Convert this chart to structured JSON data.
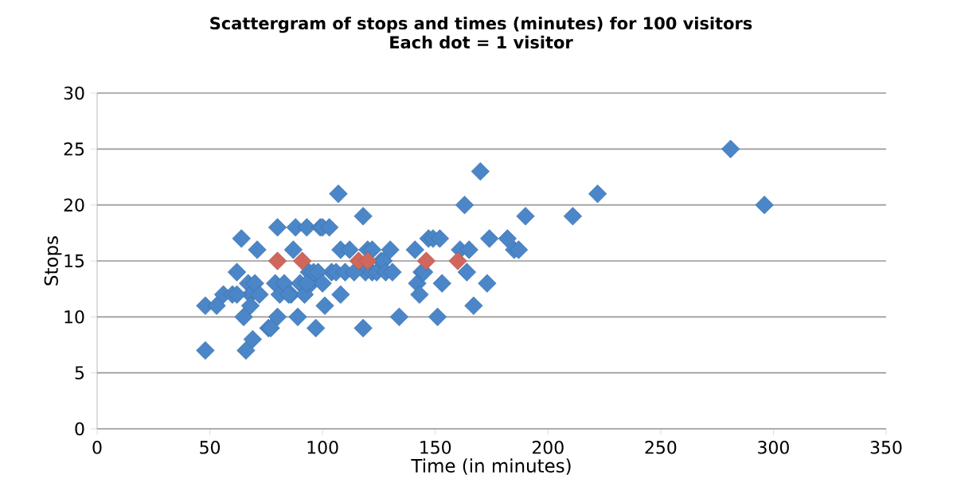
{
  "chart_data": {
    "type": "scatter",
    "title": "Scattergram of stops and times (minutes) for 100 visitors",
    "subtitle": "Each dot = 1 visitor",
    "xlabel": "Time (in minutes)",
    "ylabel": "Stops",
    "xlim": [
      0,
      350
    ],
    "ylim": [
      0,
      30
    ],
    "xticks": [
      0,
      50,
      100,
      150,
      200,
      250,
      300,
      350
    ],
    "yticks": [
      0,
      5,
      10,
      15,
      20,
      25,
      30
    ],
    "grid": "y",
    "marker": "diamond",
    "series": [
      {
        "color": "#4a86c8",
        "x": [
          48,
          48,
          53,
          56,
          60,
          62,
          64,
          65,
          66,
          67,
          68,
          69,
          70,
          71,
          72,
          76,
          79,
          80,
          80,
          81,
          83,
          86,
          87,
          88,
          89,
          90,
          92,
          93,
          94,
          95,
          96,
          97,
          99,
          100,
          101,
          103,
          104,
          106,
          107,
          108,
          108,
          110,
          112,
          118,
          118,
          119,
          120,
          122,
          124,
          126,
          127,
          128,
          130,
          131,
          134,
          141,
          142,
          143,
          144,
          147,
          149,
          151,
          152,
          153,
          161,
          163,
          164,
          165,
          167,
          170,
          173,
          174,
          182,
          185,
          187,
          190,
          211,
          222,
          281,
          296,
          98,
          114,
          100,
          145,
          68,
          85,
          122,
          93,
          62,
          77
        ],
        "values": [
          11,
          7,
          11,
          12,
          12,
          14,
          17,
          10,
          7,
          13,
          12,
          8,
          13,
          16,
          12,
          9,
          13,
          18,
          10,
          12,
          13,
          12,
          16,
          18,
          10,
          13,
          12,
          18,
          14,
          13,
          14,
          9,
          18,
          18,
          11,
          18,
          14,
          14,
          21,
          12,
          16,
          14,
          16,
          9,
          19,
          14,
          16,
          14,
          14,
          15,
          15,
          14,
          16,
          14,
          10,
          16,
          13,
          12,
          14,
          17,
          17,
          10,
          17,
          13,
          16,
          20,
          14,
          16,
          11,
          23,
          13,
          17,
          17,
          16,
          16,
          19,
          19,
          21,
          25,
          20,
          14,
          14,
          13,
          14,
          11,
          12,
          16,
          13,
          12,
          9
        ]
      },
      {
        "color": "#d0675c",
        "x": [
          80,
          91,
          116,
          120,
          146,
          160
        ],
        "values": [
          15,
          15,
          15,
          15,
          15,
          15
        ]
      }
    ]
  }
}
